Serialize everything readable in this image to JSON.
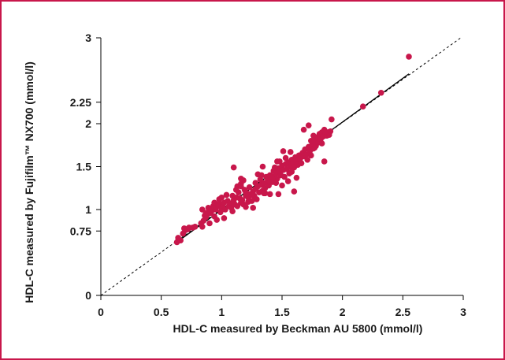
{
  "chart_data": {
    "type": "scatter",
    "title": "",
    "xlabel": "HDL-C measured by Beckman AU 5800 (mmol/l)",
    "ylabel": "HDL-C measured by Fujifilm™ NX700 (mmol/l)",
    "xlim": [
      0,
      3
    ],
    "ylim": [
      0,
      3
    ],
    "xticks": [
      0,
      0.5,
      1,
      1.5,
      2,
      2.5,
      3
    ],
    "xtick_labels": [
      "0",
      "0.5",
      "1",
      "1.5",
      "2",
      "2.5",
      "3"
    ],
    "yticks": [
      0,
      0.75,
      1,
      1.5,
      2,
      2.25,
      3
    ],
    "ytick_labels": [
      "0",
      "0.75",
      "1",
      "1.5",
      "2",
      "2.25",
      "3"
    ],
    "grid": false,
    "marker_color": "#c8174b",
    "lines": [
      {
        "kind": "regression",
        "style": "solid",
        "color": "#000000",
        "x": [
          0.62,
          2.55
        ],
        "y": [
          0.61,
          2.58
        ]
      },
      {
        "kind": "identity",
        "style": "dashed",
        "color": "#000000",
        "x": [
          0,
          2.98
        ],
        "y": [
          0,
          3.0
        ]
      }
    ],
    "points": [
      [
        0.63,
        0.62
      ],
      [
        0.64,
        0.67
      ],
      [
        0.66,
        0.64
      ],
      [
        0.68,
        0.72
      ],
      [
        0.69,
        0.78
      ],
      [
        0.7,
        0.76
      ],
      [
        0.72,
        0.77
      ],
      [
        0.73,
        0.79
      ],
      [
        0.76,
        0.79
      ],
      [
        0.78,
        0.8
      ],
      [
        0.83,
        0.84
      ],
      [
        0.84,
        0.8
      ],
      [
        0.85,
        0.87
      ],
      [
        0.86,
        0.93
      ],
      [
        0.87,
        0.91
      ],
      [
        0.88,
        0.94
      ],
      [
        0.89,
        1.02
      ],
      [
        0.9,
        0.98
      ],
      [
        0.9,
        0.84
      ],
      [
        0.91,
        0.96
      ],
      [
        0.92,
        0.99
      ],
      [
        0.93,
        1.04
      ],
      [
        0.94,
        1.08
      ],
      [
        0.94,
        0.92
      ],
      [
        0.95,
        1.0
      ],
      [
        0.96,
        1.03
      ],
      [
        0.97,
        1.05
      ],
      [
        0.98,
        1.07
      ],
      [
        0.98,
        1.12
      ],
      [
        0.99,
        0.97
      ],
      [
        1.0,
        1.02
      ],
      [
        1.01,
        1.05
      ],
      [
        1.02,
        1.08
      ],
      [
        1.02,
        0.9
      ],
      [
        1.03,
        1.0
      ],
      [
        1.05,
        1.1
      ],
      [
        1.06,
        1.04
      ],
      [
        1.07,
        1.07
      ],
      [
        1.08,
        1.02
      ],
      [
        1.09,
        1.16
      ],
      [
        1.1,
        1.11
      ],
      [
        1.11,
        1.06
      ],
      [
        1.12,
        1.14
      ],
      [
        1.13,
        1.04
      ],
      [
        1.14,
        1.2
      ],
      [
        1.15,
        1.13
      ],
      [
        1.16,
        1.08
      ],
      [
        1.17,
        1.11
      ],
      [
        1.18,
        1.06
      ],
      [
        1.19,
        1.23
      ],
      [
        1.2,
        1.16
      ],
      [
        1.2,
        1.03
      ],
      [
        1.21,
        1.19
      ],
      [
        1.22,
        1.14
      ],
      [
        1.23,
        1.26
      ],
      [
        1.24,
        1.18
      ],
      [
        1.25,
        1.1
      ],
      [
        1.26,
        1.21
      ],
      [
        1.27,
        1.16
      ],
      [
        1.28,
        1.24
      ],
      [
        1.28,
        1.31
      ],
      [
        1.29,
        1.12
      ],
      [
        1.3,
        1.27
      ],
      [
        1.31,
        1.2
      ],
      [
        1.32,
        1.35
      ],
      [
        1.33,
        1.29
      ],
      [
        1.34,
        1.22
      ],
      [
        1.35,
        1.31
      ],
      [
        1.36,
        1.25
      ],
      [
        1.37,
        1.38
      ],
      [
        1.38,
        1.33
      ],
      [
        1.39,
        1.28
      ],
      [
        1.4,
        1.4
      ],
      [
        1.41,
        1.36
      ],
      [
        1.42,
        1.32
      ],
      [
        1.43,
        1.45
      ],
      [
        1.44,
        1.39
      ],
      [
        1.45,
        1.42
      ],
      [
        1.46,
        1.36
      ],
      [
        1.47,
        1.48
      ],
      [
        1.48,
        1.44
      ],
      [
        1.49,
        1.4
      ],
      [
        1.5,
        1.51
      ],
      [
        1.51,
        1.46
      ],
      [
        1.52,
        1.38
      ],
      [
        1.53,
        1.53
      ],
      [
        1.54,
        1.47
      ],
      [
        1.55,
        1.55
      ],
      [
        1.56,
        1.42
      ],
      [
        1.57,
        1.5
      ],
      [
        1.58,
        1.58
      ],
      [
        1.59,
        1.53
      ],
      [
        1.6,
        1.49
      ],
      [
        1.61,
        1.61
      ],
      [
        1.62,
        1.56
      ],
      [
        1.63,
        1.52
      ],
      [
        1.64,
        1.63
      ],
      [
        1.65,
        1.59
      ],
      [
        1.66,
        1.54
      ],
      [
        1.67,
        1.66
      ],
      [
        1.68,
        1.62
      ],
      [
        1.69,
        1.7
      ],
      [
        1.7,
        1.64
      ],
      [
        1.71,
        1.58
      ],
      [
        1.72,
        1.73
      ],
      [
        1.73,
        1.68
      ],
      [
        1.74,
        1.63
      ],
      [
        1.75,
        1.76
      ],
      [
        1.76,
        1.71
      ],
      [
        1.77,
        1.8
      ],
      [
        1.78,
        1.74
      ],
      [
        1.79,
        1.84
      ],
      [
        1.8,
        1.78
      ],
      [
        1.81,
        1.88
      ],
      [
        1.82,
        1.82
      ],
      [
        1.83,
        1.9
      ],
      [
        1.84,
        1.85
      ],
      [
        1.85,
        1.93
      ],
      [
        1.86,
        1.88
      ],
      [
        1.87,
        1.86
      ],
      [
        1.88,
        1.9
      ],
      [
        1.89,
        1.87
      ],
      [
        1.9,
        1.91
      ],
      [
        1.91,
        2.05
      ],
      [
        1.68,
        1.93
      ],
      [
        1.72,
        1.98
      ],
      [
        1.74,
        1.8
      ],
      [
        1.76,
        1.86
      ],
      [
        1.83,
        1.77
      ],
      [
        1.85,
        1.56
      ],
      [
        1.16,
        1.3
      ],
      [
        1.18,
        1.34
      ],
      [
        1.2,
        1.2
      ],
      [
        1.22,
        1.09
      ],
      [
        1.33,
        1.4
      ],
      [
        1.36,
        1.19
      ],
      [
        1.4,
        1.18
      ],
      [
        1.42,
        1.36
      ],
      [
        1.45,
        1.31
      ],
      [
        1.47,
        1.18
      ],
      [
        1.48,
        1.56
      ],
      [
        1.5,
        1.28
      ],
      [
        1.55,
        1.33
      ],
      [
        1.58,
        1.44
      ],
      [
        1.6,
        1.21
      ],
      [
        1.62,
        1.37
      ],
      [
        1.13,
        1.27
      ],
      [
        1.04,
        1.17
      ],
      [
        1.0,
        1.14
      ],
      [
        0.96,
        0.88
      ],
      [
        0.84,
        1.0
      ],
      [
        0.87,
        0.96
      ],
      [
        1.09,
        0.98
      ],
      [
        1.1,
        1.49
      ],
      [
        1.12,
        1.23
      ],
      [
        1.16,
        1.36
      ],
      [
        1.16,
        1.27
      ],
      [
        1.25,
        1.17
      ],
      [
        1.26,
        1.02
      ],
      [
        1.3,
        1.41
      ],
      [
        1.34,
        1.5
      ],
      [
        1.35,
        1.19
      ],
      [
        1.4,
        1.32
      ],
      [
        1.44,
        1.49
      ],
      [
        1.46,
        1.56
      ],
      [
        1.51,
        1.68
      ],
      [
        1.53,
        1.6
      ],
      [
        1.57,
        1.67
      ],
      [
        1.77,
        1.72
      ],
      [
        2.17,
        2.2
      ],
      [
        2.32,
        2.36
      ],
      [
        2.55,
        2.78
      ]
    ]
  }
}
